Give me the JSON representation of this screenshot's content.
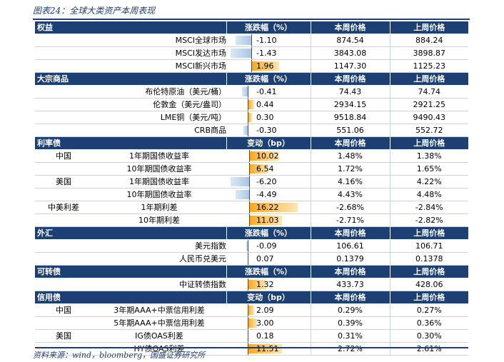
{
  "title": "图表24：全球大类资产本周表现",
  "source": "资料来源：wind，bloomberg，国盛证券研究所",
  "colors": {
    "header_bg": "#1c3f74",
    "pos_bar": "#f6a81f",
    "neg_bar": "#a9c6e5"
  },
  "sections": [
    {
      "name": "权益",
      "change_header": "涨跌幅（%）",
      "cur_header": "本周价格",
      "prev_header": "上周价格",
      "rows": [
        {
          "group": "",
          "label": "MSCI全球市场",
          "change_text": "-1.10",
          "change": -1.1,
          "cur": "874.54",
          "prev": "884.24"
        },
        {
          "group": "",
          "label": "MSCI发达市场",
          "change_text": "-1.43",
          "change": -1.43,
          "cur": "3843.08",
          "prev": "3898.87"
        },
        {
          "group": "",
          "label": "MSCI新兴市场",
          "change_text": "1.96",
          "change": 1.96,
          "cur": "1147.30",
          "prev": "1125.23"
        }
      ]
    },
    {
      "name": "大宗商品",
      "change_header": "涨跌幅（%）",
      "cur_header": "本周价格",
      "prev_header": "上周价格",
      "rows": [
        {
          "group": "",
          "label": "布伦特原油（美元/桶）",
          "change_text": "-0.41",
          "change": -0.41,
          "cur": "74.43",
          "prev": "74.74"
        },
        {
          "group": "",
          "label": "伦敦金（美元/盎司）",
          "change_text": "0.44",
          "change": 0.44,
          "cur": "2934.15",
          "prev": "2921.25"
        },
        {
          "group": "",
          "label": "LME铜（美元/吨）",
          "change_text": "0.30",
          "change": 0.3,
          "cur": "9518.84",
          "prev": "9490.43"
        },
        {
          "group": "",
          "label": "CRB商品",
          "change_text": "-0.30",
          "change": -0.3,
          "cur": "551.06",
          "prev": "552.72"
        }
      ]
    },
    {
      "name": "利率债",
      "change_header": "变动（bp）",
      "cur_header": "本周价格",
      "prev_header": "上周价格",
      "rows": [
        {
          "group": "中国",
          "label": "1年期国债收益率",
          "change_text": "10.02",
          "change": 10.02,
          "cur": "1.48%",
          "prev": "1.38%"
        },
        {
          "group": "",
          "label": "10年期国债收益率",
          "change_text": "6.54",
          "change": 6.54,
          "cur": "1.72%",
          "prev": "1.65%"
        },
        {
          "group": "美国",
          "label": "1年期国债收益率",
          "change_text": "-6.20",
          "change": -6.2,
          "cur": "4.16%",
          "prev": "4.22%"
        },
        {
          "group": "",
          "label": "10年期国债收益率",
          "change_text": "-4.49",
          "change": -4.49,
          "cur": "4.43%",
          "prev": "4.48%"
        },
        {
          "group": "中美利差",
          "label": "1年期利差",
          "change_text": "16.22",
          "change": 16.22,
          "cur": "-2.68%",
          "prev": "-2.84%"
        },
        {
          "group": "",
          "label": "10年期利差",
          "change_text": "11.03",
          "change": 11.03,
          "cur": "-2.71%",
          "prev": "-2.82%"
        }
      ]
    },
    {
      "name": "外汇",
      "change_header": "涨跌幅（%）",
      "cur_header": "本周价格",
      "prev_header": "上周价格",
      "rows": [
        {
          "group": "",
          "label": "美元指数",
          "change_text": "-0.09",
          "change": -0.09,
          "cur": "106.61",
          "prev": "106.71"
        },
        {
          "group": "",
          "label": "人民币兑美元",
          "change_text": "0.07",
          "change": 0.07,
          "cur": "0.1379",
          "prev": "0.1378"
        }
      ]
    },
    {
      "name": "可转债",
      "change_header": "涨跌幅（%）",
      "cur_header": "本周价格",
      "prev_header": "上周价格",
      "rows": [
        {
          "group": "",
          "label": "中证转债指数",
          "change_text": "1.32",
          "change": 1.32,
          "cur": "433.73",
          "prev": "428.06"
        }
      ]
    },
    {
      "name": "信用债",
      "change_header": "变动（bp）",
      "cur_header": "本周价格",
      "prev_header": "上周价格",
      "rows": [
        {
          "group": "中国",
          "label": "3年期AAA+中票信用利差",
          "change_text": "2.09",
          "change": 2.09,
          "cur": "0.29%",
          "prev": "0.27%"
        },
        {
          "group": "",
          "label": "5年期AAA+中票信用利差",
          "change_text": "3.00",
          "change": 3.0,
          "cur": "0.39%",
          "prev": "0.36%"
        },
        {
          "group": "美国",
          "label": "IG债OAS利差",
          "change_text": "0.18",
          "change": 0.18,
          "cur": "0.31%",
          "prev": "0.30%"
        },
        {
          "group": "",
          "label": "HY债OAS利差",
          "change_text": "11.51",
          "change": 11.51,
          "cur": "2.72%",
          "prev": "2.61%"
        }
      ]
    }
  ]
}
